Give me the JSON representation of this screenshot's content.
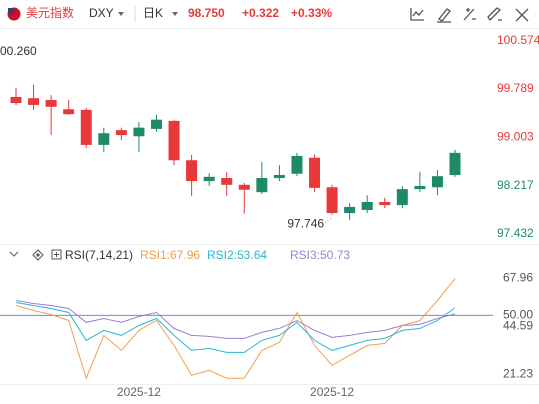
{
  "header": {
    "name": "美元指数",
    "symbol": "DXY",
    "period": "日K",
    "price": "98.750",
    "change": "+0.322",
    "change_pct": "+0.33%"
  },
  "chart_data": [
    {
      "type": "candlestick",
      "categories": [
        null,
        null,
        null,
        null,
        null,
        null,
        null,
        "2025-12",
        null,
        null,
        null,
        null,
        null,
        null,
        null,
        null,
        null,
        null,
        "2025-12",
        null,
        null,
        null,
        null,
        null,
        null,
        null
      ],
      "open": [
        99.66,
        99.64,
        99.61,
        99.46,
        99.45,
        98.88,
        99.12,
        99.02,
        99.14,
        99.27,
        98.63,
        98.29,
        98.34,
        98.23,
        98.11,
        98.34,
        98.41,
        98.67,
        98.19,
        97.77,
        97.82,
        97.95,
        97.9,
        98.16,
        98.19,
        98.39
      ],
      "high": [
        99.81,
        99.86,
        99.69,
        99.61,
        99.48,
        99.16,
        99.16,
        99.25,
        99.37,
        99.29,
        98.72,
        98.42,
        98.44,
        98.26,
        98.6,
        98.55,
        98.75,
        98.72,
        98.23,
        97.93,
        98.06,
        98.02,
        98.21,
        98.44,
        98.47,
        98.8
      ],
      "low": [
        99.53,
        99.45,
        99.04,
        99.37,
        98.83,
        98.76,
        98.96,
        98.76,
        99.09,
        98.55,
        98.05,
        98.21,
        98.05,
        97.76,
        98.08,
        98.29,
        98.37,
        98.11,
        97.746,
        97.66,
        97.77,
        97.85,
        97.85,
        98.11,
        98.06,
        98.36
      ],
      "close": [
        99.56,
        99.53,
        99.5,
        99.38,
        98.88,
        99.07,
        99.04,
        99.16,
        99.29,
        98.63,
        98.29,
        98.36,
        98.23,
        98.15,
        98.34,
        98.39,
        98.7,
        98.18,
        97.77,
        97.87,
        97.95,
        97.9,
        98.16,
        98.21,
        98.37,
        98.75
      ],
      "up_color": "#1e8a68",
      "down_color": "#e8383a",
      "ylim": [
        97.25,
        100.75
      ],
      "yticks": [
        {
          "value": 100.574,
          "label": "100.574"
        },
        {
          "value": 99.789,
          "label": "99.789"
        },
        {
          "value": 99.003,
          "label": "99.003"
        },
        {
          "value": 98.217,
          "label": "98.217"
        },
        {
          "value": 97.432,
          "label": "97.432"
        }
      ],
      "ytick_colors": [
        "#e8383a",
        "#e8383a",
        "#e8383a",
        "#1e8a68",
        "#1e8a68"
      ],
      "annotations": [
        "00.260",
        "97.746"
      ]
    },
    {
      "type": "line",
      "title": "RSI(7,14,21)",
      "series": [
        {
          "name": "RSI1:67.96",
          "color": "#f0a04b",
          "values": [
            54.81,
            52.38,
            50.43,
            47.51,
            19.27,
            40.21,
            32.9,
            42.64,
            47.51,
            35.34,
            20.73,
            23.16,
            19.27,
            19.27,
            32.9,
            36.8,
            51.4,
            35.34,
            25.6,
            30.47,
            35.34,
            36.31,
            45.07,
            47.51,
            57.25,
            67.96
          ]
        },
        {
          "name": "RSI2:53.64",
          "color": "#2bb5d0",
          "values": [
            56.27,
            54.81,
            53.35,
            51.4,
            37.77,
            42.64,
            40.21,
            45.07,
            48.48,
            40.21,
            32.9,
            33.88,
            31.93,
            31.93,
            37.77,
            40.21,
            46.54,
            37.77,
            32.9,
            35.34,
            37.77,
            38.75,
            42.64,
            43.61,
            47.51,
            53.64
          ]
        },
        {
          "name": "RSI3:50.73",
          "color": "#9b7fd4",
          "values": [
            57.25,
            55.79,
            54.81,
            53.35,
            46.54,
            48.48,
            46.54,
            49.46,
            51.4,
            43.61,
            40.21,
            39.72,
            38.75,
            38.75,
            41.67,
            43.61,
            47.51,
            42.64,
            39.23,
            40.21,
            41.67,
            42.64,
            45.07,
            45.56,
            48.48,
            50.73
          ]
        }
      ],
      "ylim": [
        16,
        78
      ],
      "yticks": [
        67.96,
        {
          "value": 50,
          "label": "50.00"
        },
        44.59,
        21.23
      ],
      "reference_line": {
        "value": 50,
        "color": "#3ca0e8"
      }
    }
  ]
}
